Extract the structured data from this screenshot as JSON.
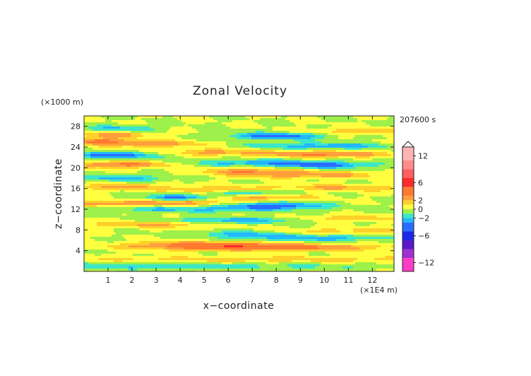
{
  "chart_data": {
    "type": "heatmap",
    "title": "Zonal Velocity",
    "xlabel": "x−coordinate",
    "ylabel": "z−coordinate",
    "x_unit": "(×1E4 m)",
    "y_unit": "(×1000 m)",
    "time_label": "207600 s",
    "xlim": [
      0,
      12.9
    ],
    "ylim": [
      0,
      30
    ],
    "x_ticks": [
      "1",
      "2",
      "3",
      "4",
      "5",
      "6",
      "7",
      "8",
      "9",
      "10",
      "11",
      "12"
    ],
    "y_ticks": [
      "4",
      "8",
      "12",
      "16",
      "20",
      "24",
      "28"
    ],
    "colorbar": {
      "ticks": [
        "12",
        "6",
        "2",
        "0",
        "−2",
        "−6",
        "−12"
      ],
      "levels": [
        {
          "range": [
            11,
            14
          ],
          "color": "#ffb4b4"
        },
        {
          "range": [
            9,
            11
          ],
          "color": "#ff8c8c"
        },
        {
          "range": [
            7,
            9
          ],
          "color": "#ff5f5f"
        },
        {
          "range": [
            5,
            7
          ],
          "color": "#ff2a2a"
        },
        {
          "range": [
            3,
            5
          ],
          "color": "#ff7a30"
        },
        {
          "range": [
            2,
            3
          ],
          "color": "#ff9f3c"
        },
        {
          "range": [
            1,
            2
          ],
          "color": "#ffd02a"
        },
        {
          "range": [
            0,
            1
          ],
          "color": "#ffff40"
        },
        {
          "range": [
            -1,
            0
          ],
          "color": "#9ef04a"
        },
        {
          "range": [
            -2,
            -1
          ],
          "color": "#3ce6c8"
        },
        {
          "range": [
            -3,
            -2
          ],
          "color": "#22b8ff"
        },
        {
          "range": [
            -5,
            -3
          ],
          "color": "#2a6cff"
        },
        {
          "range": [
            -7,
            -5
          ],
          "color": "#1c28e6"
        },
        {
          "range": [
            -9,
            -7
          ],
          "color": "#5a18c8"
        },
        {
          "range": [
            -11,
            -9
          ],
          "color": "#a030d0"
        },
        {
          "range": [
            -14,
            -11
          ],
          "color": "#ff3cc8"
        }
      ]
    },
    "bands": [
      {
        "z": 1.0,
        "amp": -1.8,
        "x": 0,
        "w": 13
      },
      {
        "z": 2.3,
        "amp": 1.6,
        "x": 8,
        "w": 10
      },
      {
        "z": 4.6,
        "amp": 3.8,
        "x": 7.5,
        "w": 5
      },
      {
        "z": 5.2,
        "amp": 3.0,
        "x": 5,
        "w": 3
      },
      {
        "z": 6.4,
        "amp": -2.6,
        "x": 9.5,
        "w": 3
      },
      {
        "z": 7.2,
        "amp": -2.2,
        "x": 6.5,
        "w": 2
      },
      {
        "z": 7.8,
        "amp": 1.5,
        "x": 11,
        "w": 3
      },
      {
        "z": 9.1,
        "amp": 2.4,
        "x": 3,
        "w": 3
      },
      {
        "z": 9.8,
        "amp": -2.8,
        "x": 6,
        "w": 3
      },
      {
        "z": 10.2,
        "amp": 1.8,
        "x": 11,
        "w": 2
      },
      {
        "z": 12.0,
        "amp": -2.2,
        "x": 4.5,
        "w": 4
      },
      {
        "z": 12.7,
        "amp": -3.8,
        "x": 8,
        "w": 2
      },
      {
        "z": 13.1,
        "amp": 2.4,
        "x": 1,
        "w": 2
      },
      {
        "z": 13.3,
        "amp": 2.8,
        "x": 4.3,
        "w": 2
      },
      {
        "z": 14.2,
        "amp": -3.5,
        "x": 4,
        "w": 1.5
      },
      {
        "z": 14.4,
        "amp": 2.6,
        "x": 7.5,
        "w": 2
      },
      {
        "z": 15.2,
        "amp": -2.8,
        "x": 7,
        "w": 2
      },
      {
        "z": 15.7,
        "amp": 2.4,
        "x": 5.5,
        "w": 2
      },
      {
        "z": 16.3,
        "amp": 2.2,
        "x": 1.5,
        "w": 2
      },
      {
        "z": 16.1,
        "amp": 2.2,
        "x": 10.5,
        "w": 3
      },
      {
        "z": 18.0,
        "amp": -2.3,
        "x": 1.5,
        "w": 2
      },
      {
        "z": 18.6,
        "amp": 2.6,
        "x": 9.5,
        "w": 3
      },
      {
        "z": 19.3,
        "amp": 2.8,
        "x": 7,
        "w": 2
      },
      {
        "z": 20.6,
        "amp": 3.4,
        "x": 1.5,
        "w": 2
      },
      {
        "z": 20.5,
        "amp": -3.5,
        "x": 10,
        "w": 2
      },
      {
        "z": 21.0,
        "amp": -2.6,
        "x": 7,
        "w": 2.5
      },
      {
        "z": 22.4,
        "amp": -4.0,
        "x": 1,
        "w": 2
      },
      {
        "z": 22.6,
        "amp": 3.4,
        "x": 10,
        "w": 2.5
      },
      {
        "z": 23.0,
        "amp": 2.4,
        "x": 5.5,
        "w": 2
      },
      {
        "z": 24.2,
        "amp": -2.6,
        "x": 10,
        "w": 3
      },
      {
        "z": 24.6,
        "amp": 2.6,
        "x": 3,
        "w": 2
      },
      {
        "z": 25.1,
        "amp": 3.2,
        "x": 0.5,
        "w": 1.5
      },
      {
        "z": 26.1,
        "amp": -3.8,
        "x": 8,
        "w": 2
      },
      {
        "z": 26.4,
        "amp": 2.6,
        "x": 1.2,
        "w": 1.5
      },
      {
        "z": 27.5,
        "amp": -2.3,
        "x": 1.5,
        "w": 1.5
      },
      {
        "z": 27.0,
        "amp": 2.0,
        "x": 11.5,
        "w": 2
      }
    ]
  }
}
